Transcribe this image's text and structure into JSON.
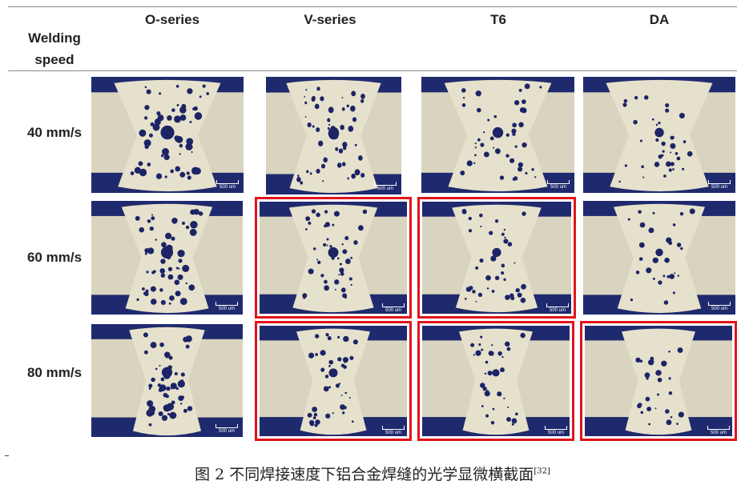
{
  "figure": {
    "row_header": [
      "Welding",
      "speed"
    ],
    "columns": [
      "O-series",
      "V-series",
      "T6",
      "DA"
    ],
    "rows": [
      "40 mm/s",
      "60 mm/s",
      "80 mm/s"
    ],
    "scale_bar_label": "500 um",
    "highlighted_cells": [
      [
        1,
        1
      ],
      [
        1,
        2
      ],
      [
        2,
        1
      ],
      [
        2,
        2
      ],
      [
        2,
        3
      ]
    ],
    "highlight_color": "#e0141a",
    "colors": {
      "mount_blue": "#1f2a6e",
      "base_metal": "#d9d4bf",
      "weld_zone": "#e6e1cc",
      "pore": "#1c2466"
    }
  },
  "caption": {
    "text": "图 2   不同焊接速度下铝合金焊缝的光学显微横截面",
    "ref": "[32]"
  }
}
